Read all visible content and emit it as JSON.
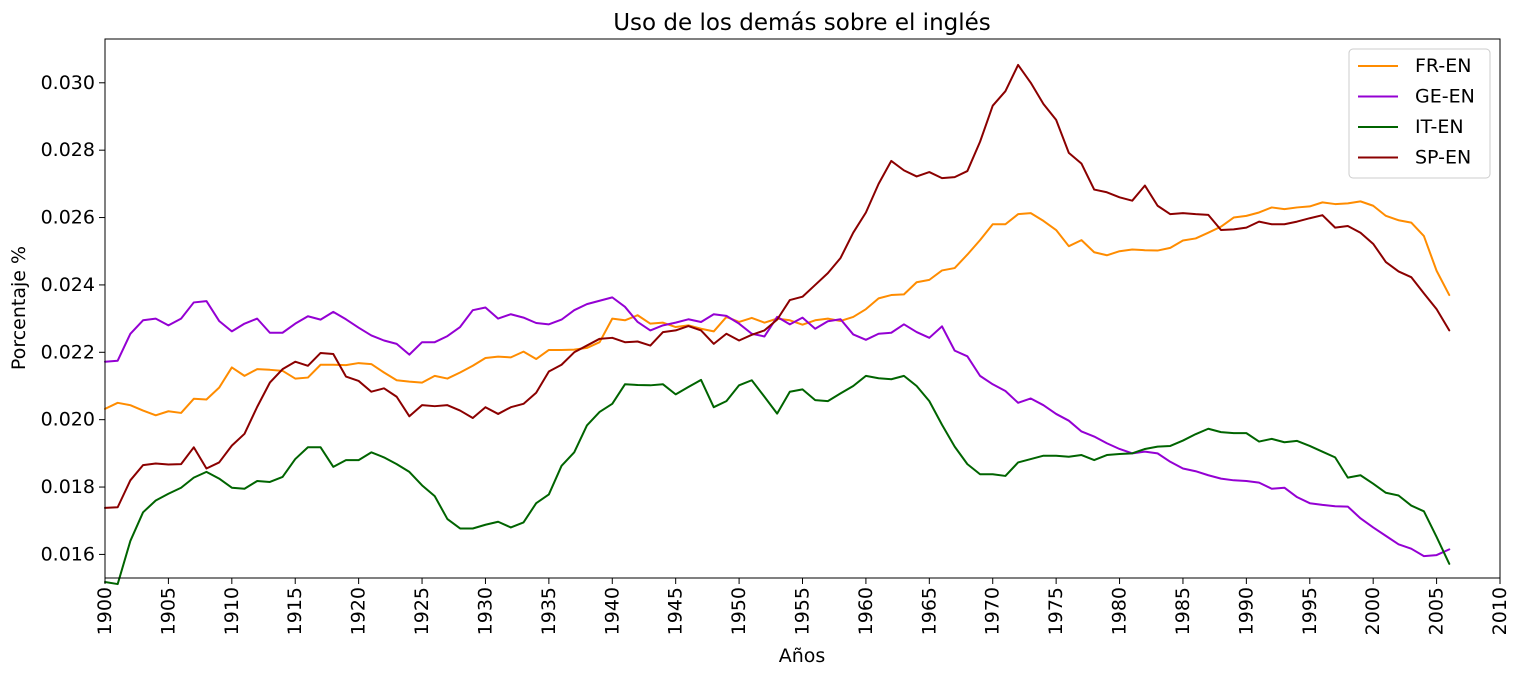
{
  "chart_data": {
    "type": "line",
    "title": "Uso de los demás sobre el inglés",
    "xlabel": "Años",
    "ylabel": "Porcentaje %",
    "xlim": [
      1900,
      2010
    ],
    "ylim": [
      0.0153,
      0.0313
    ],
    "x_ticks": [
      "1900",
      "1905",
      "1910",
      "1915",
      "1920",
      "1925",
      "1930",
      "1935",
      "1940",
      "1945",
      "1950",
      "1955",
      "1960",
      "1965",
      "1970",
      "1975",
      "1980",
      "1985",
      "1990",
      "1995",
      "2000",
      "2005",
      "2010"
    ],
    "y_ticks": [
      "0.016",
      "0.018",
      "0.020",
      "0.022",
      "0.024",
      "0.026",
      "0.028",
      "0.030"
    ],
    "grid": false,
    "legend_position": "top-right",
    "x": [
      1900,
      1901,
      1902,
      1903,
      1904,
      1905,
      1906,
      1907,
      1908,
      1909,
      1910,
      1911,
      1912,
      1913,
      1914,
      1915,
      1916,
      1917,
      1918,
      1919,
      1920,
      1921,
      1922,
      1923,
      1924,
      1925,
      1926,
      1927,
      1928,
      1929,
      1930,
      1931,
      1932,
      1933,
      1934,
      1935,
      1936,
      1937,
      1938,
      1939,
      1940,
      1941,
      1942,
      1943,
      1944,
      1945,
      1946,
      1947,
      1948,
      1949,
      1950,
      1951,
      1952,
      1953,
      1954,
      1955,
      1956,
      1957,
      1958,
      1959,
      1960,
      1961,
      1962,
      1963,
      1964,
      1965,
      1966,
      1967,
      1968,
      1969,
      1970,
      1971,
      1972,
      1973,
      1974,
      1975,
      1976,
      1977,
      1978,
      1979,
      1980,
      1981,
      1982,
      1983,
      1984,
      1985,
      1986,
      1987,
      1988,
      1989,
      1990,
      1991,
      1992,
      1993,
      1994,
      1995,
      1996,
      1997,
      1998,
      1999,
      2000,
      2001,
      2002,
      2003,
      2004,
      2005,
      2006
    ],
    "series": [
      {
        "name": "FR-EN",
        "color": "#ff8c00",
        "values": [
          0.02032,
          0.0205,
          0.02043,
          0.02027,
          0.02013,
          0.02025,
          0.0202,
          0.02062,
          0.0206,
          0.02095,
          0.02155,
          0.0213,
          0.0215,
          0.02148,
          0.02145,
          0.02122,
          0.02125,
          0.02163,
          0.02163,
          0.02162,
          0.02168,
          0.02165,
          0.0214,
          0.02117,
          0.02113,
          0.0211,
          0.0213,
          0.02122,
          0.0214,
          0.0216,
          0.02183,
          0.02187,
          0.02185,
          0.02202,
          0.0218,
          0.02207,
          0.02207,
          0.02208,
          0.02213,
          0.0223,
          0.023,
          0.02295,
          0.0231,
          0.02285,
          0.02288,
          0.02275,
          0.0228,
          0.0227,
          0.02262,
          0.02305,
          0.0229,
          0.02302,
          0.02288,
          0.023,
          0.02295,
          0.02282,
          0.02295,
          0.023,
          0.02293,
          0.02305,
          0.02328,
          0.0236,
          0.0237,
          0.02372,
          0.02408,
          0.02415,
          0.02443,
          0.0245,
          0.0249,
          0.02533,
          0.0258,
          0.0258,
          0.0261,
          0.02613,
          0.0259,
          0.02563,
          0.02515,
          0.02533,
          0.02497,
          0.02488,
          0.025,
          0.02505,
          0.02503,
          0.02502,
          0.0251,
          0.02532,
          0.02538,
          0.02555,
          0.02573,
          0.026,
          0.02605,
          0.02615,
          0.0263,
          0.02625,
          0.0263,
          0.02633,
          0.02645,
          0.0264,
          0.02642,
          0.02648,
          0.02635,
          0.02605,
          0.02592,
          0.02585,
          0.02545,
          0.02442,
          0.0237
        ]
      },
      {
        "name": "GE-EN",
        "color": "#9400d3",
        "values": [
          0.02172,
          0.02175,
          0.02255,
          0.02295,
          0.023,
          0.0228,
          0.023,
          0.02348,
          0.02352,
          0.02293,
          0.02262,
          0.02285,
          0.023,
          0.02258,
          0.02258,
          0.02285,
          0.02307,
          0.02297,
          0.0232,
          0.02298,
          0.02273,
          0.0225,
          0.02235,
          0.02225,
          0.02193,
          0.0223,
          0.0223,
          0.02248,
          0.02275,
          0.02325,
          0.02333,
          0.023,
          0.02313,
          0.02303,
          0.02287,
          0.02283,
          0.02297,
          0.02325,
          0.02343,
          0.02353,
          0.02363,
          0.02335,
          0.0229,
          0.02265,
          0.0228,
          0.02288,
          0.02298,
          0.0229,
          0.02313,
          0.02308,
          0.02285,
          0.02255,
          0.02247,
          0.02305,
          0.02283,
          0.02303,
          0.0227,
          0.02292,
          0.02298,
          0.02253,
          0.02237,
          0.02255,
          0.02258,
          0.02283,
          0.0226,
          0.02243,
          0.02277,
          0.02205,
          0.02188,
          0.0213,
          0.02105,
          0.02085,
          0.0205,
          0.02063,
          0.02043,
          0.02017,
          0.01997,
          0.01965,
          0.0195,
          0.0193,
          0.01913,
          0.019,
          0.01905,
          0.019,
          0.01875,
          0.01855,
          0.01847,
          0.01835,
          0.01825,
          0.0182,
          0.01818,
          0.01813,
          0.01795,
          0.01798,
          0.0177,
          0.01752,
          0.01747,
          0.01743,
          0.01742,
          0.01707,
          0.0168,
          0.01655,
          0.0163,
          0.01617,
          0.01595,
          0.01598,
          0.01615
        ]
      },
      {
        "name": "IT-EN",
        "color": "#006400",
        "values": [
          0.01518,
          0.01512,
          0.0164,
          0.01725,
          0.0176,
          0.0178,
          0.01798,
          0.01828,
          0.01845,
          0.01825,
          0.01798,
          0.01795,
          0.01818,
          0.01815,
          0.0183,
          0.01883,
          0.01918,
          0.01918,
          0.0186,
          0.0188,
          0.0188,
          0.01903,
          0.01888,
          0.01868,
          0.01845,
          0.01805,
          0.01773,
          0.01705,
          0.01677,
          0.01677,
          0.01688,
          0.01697,
          0.0168,
          0.01695,
          0.01752,
          0.01778,
          0.01863,
          0.01903,
          0.01983,
          0.02023,
          0.02047,
          0.02105,
          0.02103,
          0.02102,
          0.02105,
          0.02075,
          0.02097,
          0.02118,
          0.02037,
          0.02055,
          0.02102,
          0.02117,
          0.02068,
          0.02018,
          0.02083,
          0.0209,
          0.02058,
          0.02055,
          0.02078,
          0.021,
          0.0213,
          0.02123,
          0.0212,
          0.0213,
          0.021,
          0.02055,
          0.01985,
          0.0192,
          0.01868,
          0.01838,
          0.01838,
          0.01833,
          0.01873,
          0.01883,
          0.01893,
          0.01893,
          0.0189,
          0.01895,
          0.0188,
          0.01895,
          0.01898,
          0.019,
          0.01913,
          0.0192,
          0.01922,
          0.01938,
          0.01957,
          0.01973,
          0.01963,
          0.0196,
          0.0196,
          0.01935,
          0.01943,
          0.01933,
          0.01937,
          0.01922,
          0.01905,
          0.01888,
          0.01828,
          0.01835,
          0.0181,
          0.01783,
          0.01775,
          0.01745,
          0.01728,
          0.01652,
          0.01572
        ]
      },
      {
        "name": "SP-EN",
        "color": "#8b0000",
        "values": [
          0.01738,
          0.0174,
          0.0182,
          0.01865,
          0.0187,
          0.01867,
          0.01868,
          0.01918,
          0.01855,
          0.01873,
          0.01923,
          0.01958,
          0.02038,
          0.0211,
          0.0215,
          0.02172,
          0.0216,
          0.02198,
          0.02195,
          0.02128,
          0.02115,
          0.02083,
          0.02093,
          0.02068,
          0.0201,
          0.02043,
          0.0204,
          0.02043,
          0.02027,
          0.02005,
          0.02037,
          0.02017,
          0.02037,
          0.02047,
          0.0208,
          0.02143,
          0.02163,
          0.022,
          0.0222,
          0.0224,
          0.02243,
          0.0223,
          0.02232,
          0.0222,
          0.0226,
          0.02265,
          0.02278,
          0.02265,
          0.02225,
          0.02255,
          0.02235,
          0.02252,
          0.02265,
          0.02297,
          0.02355,
          0.02365,
          0.024,
          0.02435,
          0.0248,
          0.02555,
          0.02615,
          0.027,
          0.02768,
          0.0274,
          0.02722,
          0.02735,
          0.02717,
          0.0272,
          0.02738,
          0.02825,
          0.02932,
          0.02975,
          0.03053,
          0.03,
          0.02937,
          0.0289,
          0.02792,
          0.0276,
          0.02683,
          0.02675,
          0.0266,
          0.0265,
          0.02695,
          0.02635,
          0.0261,
          0.02613,
          0.0261,
          0.02608,
          0.02563,
          0.02565,
          0.0257,
          0.02588,
          0.0258,
          0.0258,
          0.02588,
          0.02598,
          0.02607,
          0.0257,
          0.02575,
          0.02555,
          0.02522,
          0.02468,
          0.0244,
          0.02423,
          0.02375,
          0.02328,
          0.02265
        ]
      }
    ]
  }
}
